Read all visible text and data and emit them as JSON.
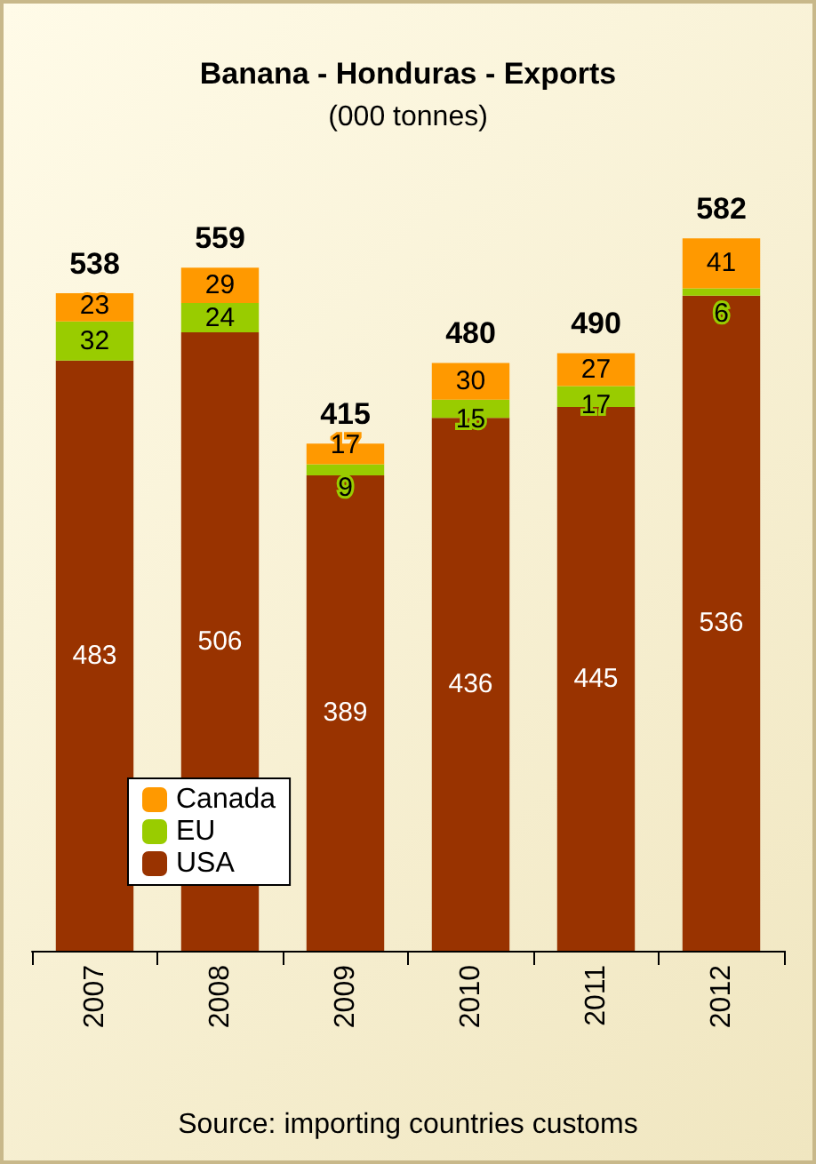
{
  "chart_data": {
    "type": "bar",
    "title": "Banana - Honduras - Exports",
    "subtitle": "(000 tonnes)",
    "annotations": [
      "Source: importing countries customs"
    ],
    "categories": [
      "2007",
      "2008",
      "2009",
      "2010",
      "2011",
      "2012"
    ],
    "stacked": true,
    "data_labels": true,
    "series": [
      {
        "name": "USA",
        "color": "#993300",
        "values": [
          483,
          506,
          389,
          436,
          445,
          536
        ]
      },
      {
        "name": "EU",
        "color": "#99cc00",
        "values": [
          32,
          24,
          9,
          15,
          17,
          6
        ]
      },
      {
        "name": "Canada",
        "color": "#ff9900",
        "values": [
          23,
          29,
          17,
          30,
          27,
          41
        ]
      }
    ],
    "totals": [
      "538",
      "559",
      "415",
      "480",
      "490",
      "582"
    ],
    "legend": "bottom left"
  }
}
